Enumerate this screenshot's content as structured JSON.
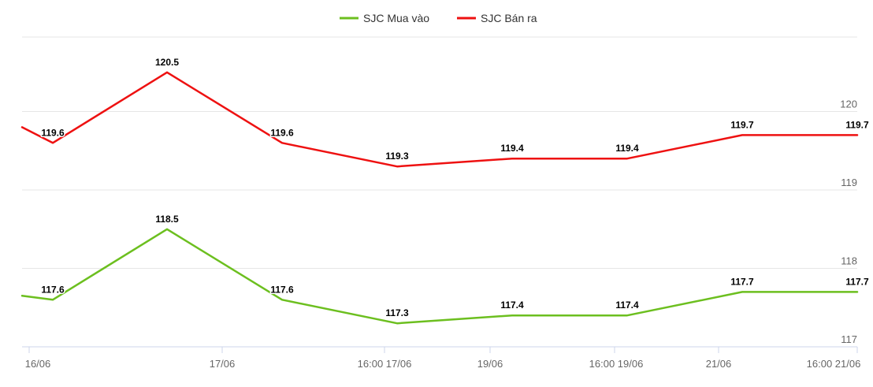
{
  "chart_data": {
    "type": "line",
    "categories": [
      "16/06 a",
      "16/06 b",
      "17/06 a",
      "17/06 b",
      "16:00 17/06",
      "19/06",
      "16:00 19/06",
      "21/06",
      "16:00 21/06"
    ],
    "x_tick_labels": [
      "16/06",
      "17/06",
      "16:00 17/06",
      "19/06",
      "16:00 19/06",
      "21/06",
      "16:00 21/06"
    ],
    "y_ticks": [
      117,
      118,
      119,
      120
    ],
    "y_tick_labels": [
      "117",
      "118",
      "119",
      "120"
    ],
    "ylim": [
      117,
      120.95
    ],
    "grid": true,
    "legend_position": "top-center",
    "title": "",
    "xlabel": "",
    "ylabel": "",
    "series": [
      {
        "name": "SJC Mua vào",
        "color": "#6cbf1f",
        "values": [
          117.65,
          117.6,
          118.5,
          117.6,
          117.3,
          117.4,
          117.4,
          117.7,
          117.7
        ],
        "labels": [
          "",
          "117.6",
          "118.5",
          "117.6",
          "117.3",
          "117.4",
          "117.4",
          "117.7",
          "117.7"
        ]
      },
      {
        "name": "SJC Bán ra",
        "color": "#ee1111",
        "values": [
          119.8,
          119.6,
          120.5,
          119.6,
          119.3,
          119.4,
          119.4,
          119.7,
          119.7
        ],
        "labels": [
          "",
          "119.6",
          "120.5",
          "119.6",
          "119.3",
          "119.4",
          "119.4",
          "119.7",
          "119.7"
        ]
      }
    ]
  }
}
